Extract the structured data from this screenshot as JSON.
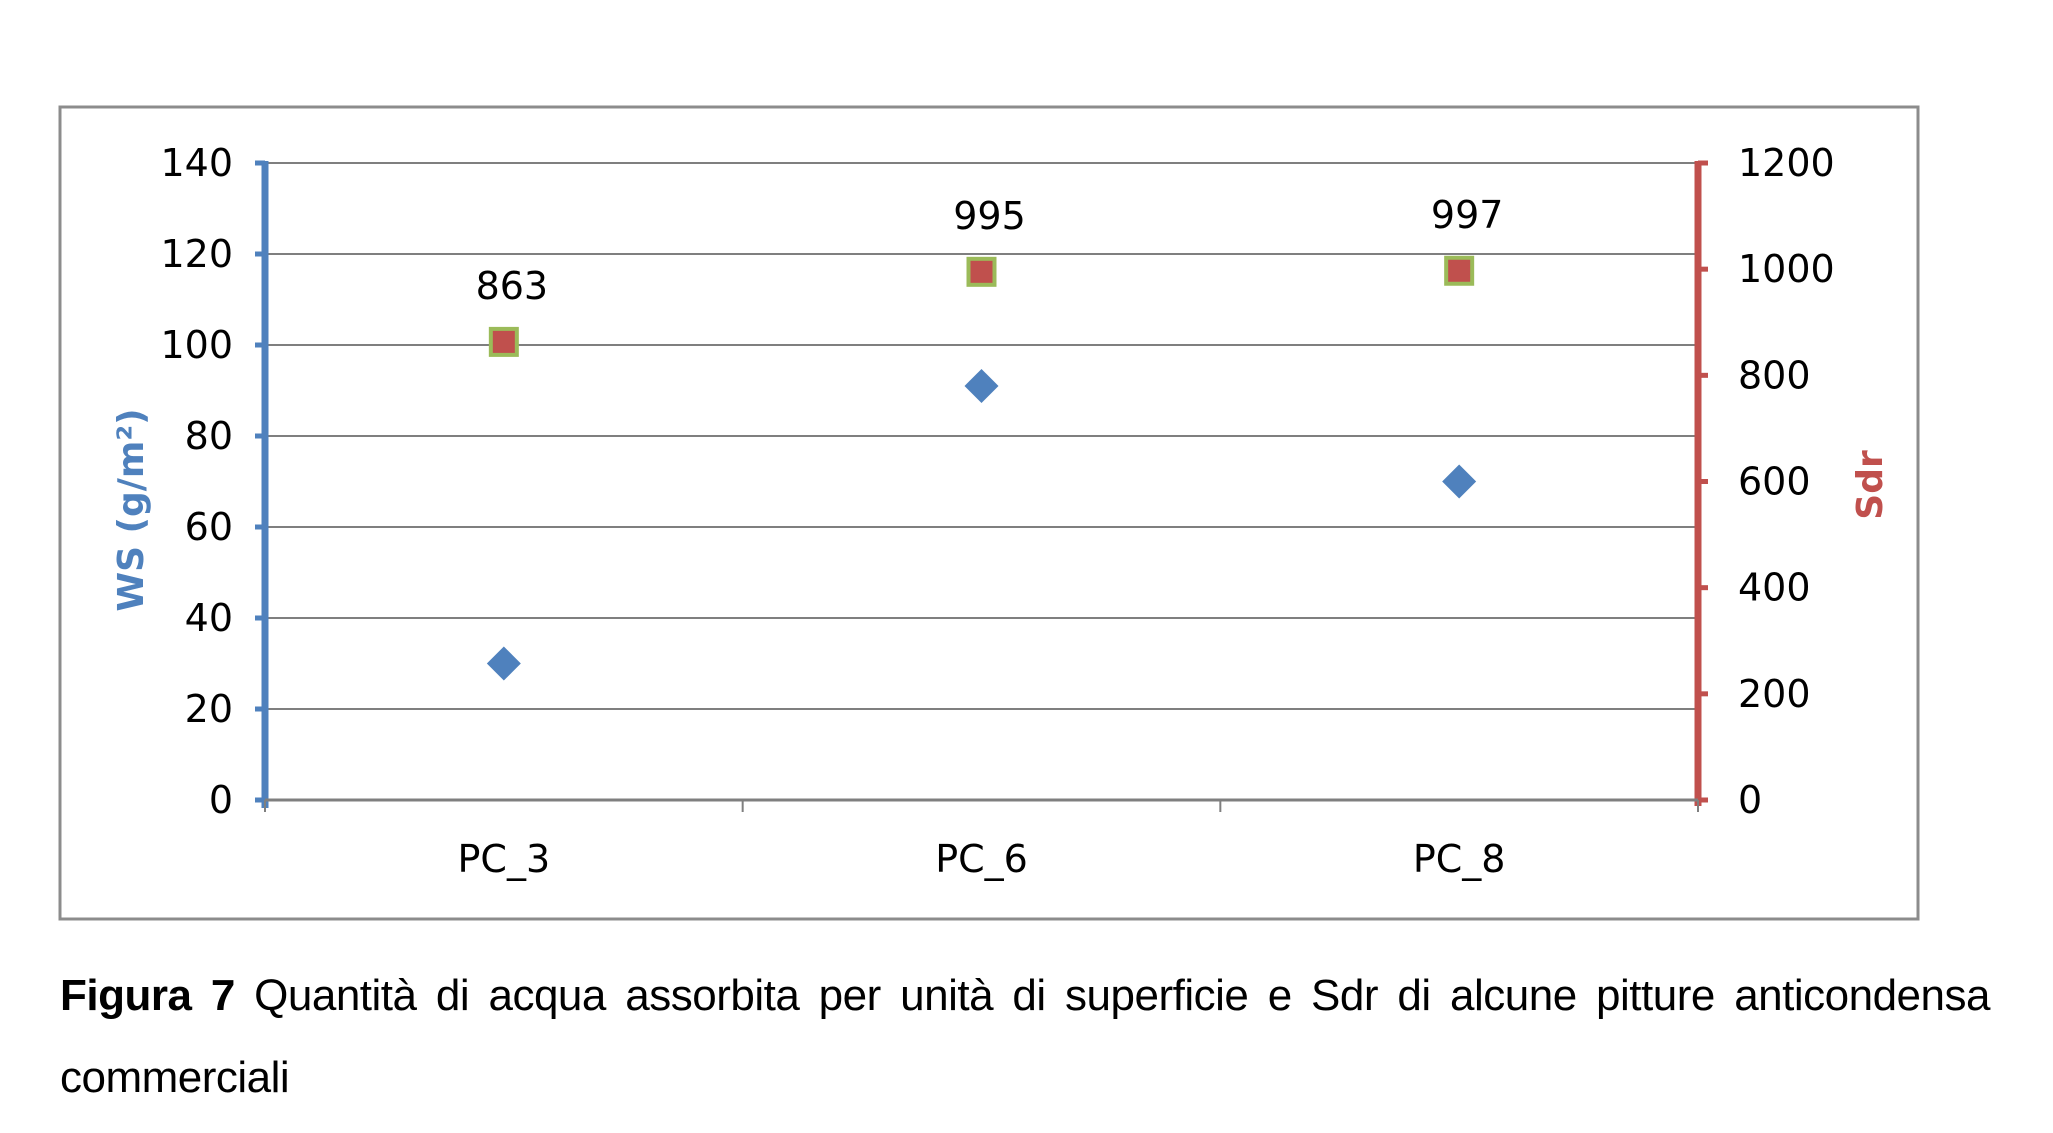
{
  "chart_data": {
    "type": "scatter",
    "categories": [
      "PC_3",
      "PC_6",
      "PC_8"
    ],
    "series": [
      {
        "name": "",
        "axis": "left",
        "marker": "diamond",
        "color": "#4F81BD",
        "values": [
          30,
          91,
          70
        ]
      },
      {
        "name": "",
        "axis": "right",
        "marker": "square",
        "color": "#C0504D",
        "border_color": "#9BBB59",
        "values": [
          863,
          995,
          997
        ],
        "data_labels": [
          "863",
          "995",
          "997"
        ]
      }
    ],
    "y_left": {
      "label": "WS (g/m²)",
      "ylim": [
        0,
        140
      ],
      "ticks": [
        "0",
        "20",
        "40",
        "60",
        "80",
        "100",
        "120",
        "140"
      ],
      "color": "#4F81BD"
    },
    "y_right": {
      "label": "Sdr",
      "ylim": [
        0,
        1200
      ],
      "ticks": [
        "0",
        "200",
        "400",
        "600",
        "800",
        "1000",
        "1200"
      ],
      "color": "#C0504D"
    },
    "grid": true,
    "legend": "none"
  },
  "caption": {
    "figure_label": "Figura 7",
    "text": "Quantità di acqua assorbita per unità di superficie e Sdr di alcune pitture anticondensa commerciali"
  }
}
